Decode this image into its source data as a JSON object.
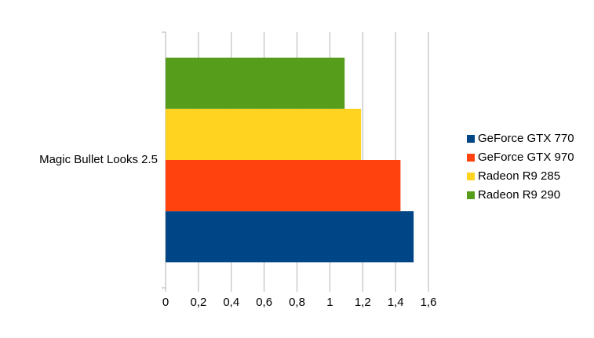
{
  "chart_data": {
    "type": "bar",
    "orientation": "horizontal",
    "categories": [
      "Magic Bullet Looks 2.5"
    ],
    "series": [
      {
        "name": "GeForce GTX 770",
        "color": "#004586",
        "values": [
          1.51
        ]
      },
      {
        "name": "GeForce GTX 970",
        "color": "#ff420e",
        "values": [
          1.43
        ]
      },
      {
        "name": "Radeon R9 285",
        "color": "#ffd320",
        "values": [
          1.19
        ]
      },
      {
        "name": "Radeon R9 290",
        "color": "#579d1c",
        "values": [
          1.09
        ]
      }
    ],
    "xlim": [
      0,
      1.6
    ],
    "xticks": [
      0,
      {
        "value": 0.2,
        "label": "0,2"
      },
      {
        "value": 0.4,
        "label": "0,4"
      },
      {
        "value": 0.6,
        "label": "0,6"
      },
      {
        "value": 0.8,
        "label": "0,8"
      },
      1,
      {
        "value": 1.2,
        "label": "1,2"
      },
      {
        "value": 1.4,
        "label": "1,4"
      },
      {
        "value": 1.6,
        "label": "1,6"
      }
    ],
    "grid": true,
    "legend": "right"
  }
}
